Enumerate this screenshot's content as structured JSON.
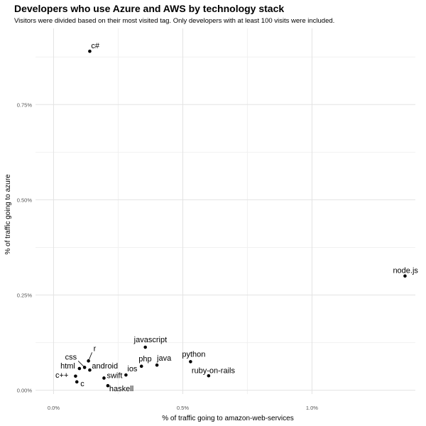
{
  "chart_data": {
    "type": "scatter",
    "title": "Developers who use Azure and AWS by technology stack",
    "subtitle": "Visitors were divided based on their most visited tag. Only developers with at least 100 visits were included.",
    "xlabel": "% of traffic going to amazon-web-services",
    "ylabel": "% of traffic going to azure",
    "xlim": [
      -0.07,
      1.4
    ],
    "ylim": [
      -0.01,
      0.95
    ],
    "x_ticks": [
      0.0,
      0.5,
      1.0
    ],
    "x_tick_labels": [
      "0.0%",
      "0.5%",
      "1.0%"
    ],
    "y_ticks": [
      0.0,
      0.25,
      0.5,
      0.75
    ],
    "y_tick_labels": [
      "0.00%",
      "0.25%",
      "0.50%",
      "0.75%"
    ],
    "grid": true,
    "legend": "none",
    "points": [
      {
        "label": "c#",
        "x": 0.14,
        "y": 0.89
      },
      {
        "label": "node.js",
        "x": 1.36,
        "y": 0.3
      },
      {
        "label": "javascript",
        "x": 0.355,
        "y": 0.113
      },
      {
        "label": "python",
        "x": 0.53,
        "y": 0.075
      },
      {
        "label": "php",
        "x": 0.34,
        "y": 0.063
      },
      {
        "label": "java",
        "x": 0.4,
        "y": 0.066
      },
      {
        "label": "ruby-on-rails",
        "x": 0.6,
        "y": 0.038
      },
      {
        "label": "ios",
        "x": 0.28,
        "y": 0.04
      },
      {
        "label": "swift",
        "x": 0.195,
        "y": 0.032
      },
      {
        "label": "haskell",
        "x": 0.21,
        "y": 0.012
      },
      {
        "label": "r",
        "x": 0.135,
        "y": 0.077
      },
      {
        "label": "css",
        "x": 0.12,
        "y": 0.06
      },
      {
        "label": "android",
        "x": 0.14,
        "y": 0.053
      },
      {
        "label": "html",
        "x": 0.1,
        "y": 0.057
      },
      {
        "label": "c++",
        "x": 0.085,
        "y": 0.037
      },
      {
        "label": "c",
        "x": 0.09,
        "y": 0.022
      }
    ]
  }
}
